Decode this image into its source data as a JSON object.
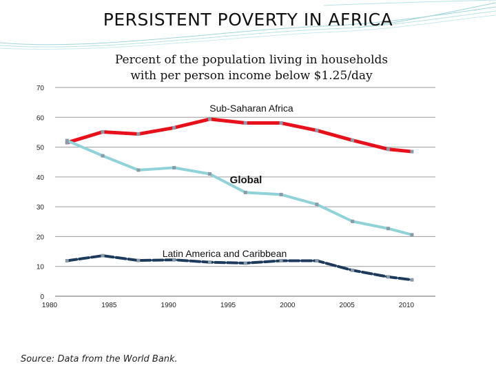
{
  "slide": {
    "title": "PERSISTENT POVERTY IN AFRICA",
    "subtitle_line1": "Percent of the population living in households",
    "subtitle_line2": "with per person income below $1.25/day",
    "source": "Source: Data from the World Bank."
  },
  "colors": {
    "sub_saharan": "#e8101a",
    "global": "#8fd3d8",
    "latin_america": "#1b3a5c",
    "grid": "#9a9a9a",
    "marker": "#8a9aa8"
  },
  "chart_data": {
    "type": "line",
    "title": "Percent of the population living in households with per person income below $1.25/day",
    "x": [
      1981,
      1984,
      1987,
      1990,
      1993,
      1996,
      1999,
      2002,
      2005,
      2008,
      2010
    ],
    "xticks": [
      "1980",
      "1985",
      "1990",
      "1995",
      "2000",
      "2005",
      "2010"
    ],
    "yticks": [
      "0",
      "10",
      "20",
      "30",
      "40",
      "50",
      "60",
      "70"
    ],
    "xlim": [
      1980,
      2010
    ],
    "ylim": [
      0,
      70
    ],
    "grid": true,
    "series": [
      {
        "name": "Sub-Saharan Africa",
        "values": [
          51.5,
          55.1,
          54.4,
          56.5,
          59.4,
          58.1,
          58.1,
          55.6,
          52.3,
          49.3,
          48.5
        ]
      },
      {
        "name": "Global",
        "values": [
          52.2,
          47.1,
          42.3,
          43.1,
          41.0,
          34.8,
          34.1,
          30.8,
          25.1,
          22.7,
          20.6
        ]
      },
      {
        "name": "Latin America and Caribbean",
        "values": [
          11.9,
          13.6,
          12.0,
          12.2,
          11.4,
          11.1,
          11.9,
          11.9,
          8.7,
          6.5,
          5.5
        ]
      }
    ]
  }
}
